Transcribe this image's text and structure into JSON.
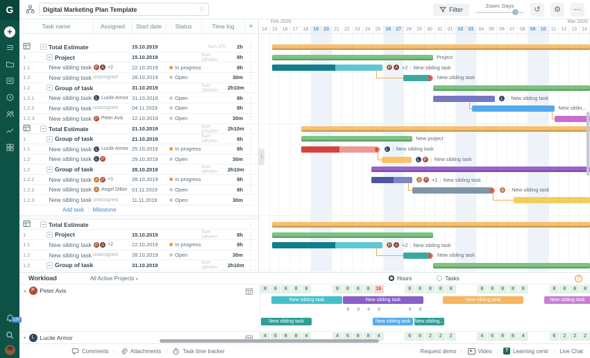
{
  "glyphs": {
    "kebab": "⋮",
    "star": "☆",
    "caret": "▾",
    "tri_up": "▴",
    "tri_down": "▾",
    "minus": "−",
    "more": "⋯",
    "history": "↺",
    "gear": "⚙",
    "play": "▶",
    "chevron": "‹",
    "plus": "+",
    "help": "?"
  },
  "sidebar": {
    "logo": "G",
    "icons": [
      "task-list-icon",
      "folder-icon",
      "board-icon",
      "clock-icon",
      "team-icon",
      "analytics-icon",
      "portfolio-icon"
    ],
    "notification_badge": "120"
  },
  "topbar": {
    "title": "Digital Marketing Plan Template",
    "filter_label": "Filter",
    "zoom_label": "Zoom: Days"
  },
  "table": {
    "columns": [
      "Task name",
      "Assigned",
      "Start date",
      "Status",
      "Time log"
    ],
    "add_column_label": "+"
  },
  "statuses": {
    "In progress": "#f0932f",
    "Open": "#c3cbd1"
  },
  "timeline": {
    "months": [
      {
        "label": "Feb 2020",
        "span": 18
      },
      {
        "label": "Mar 2020",
        "span": 14
      }
    ],
    "days": [
      "14",
      "15",
      "16",
      "17",
      "18",
      "19",
      "20",
      "21",
      "22",
      "23",
      "24",
      "25",
      "26",
      "27",
      "28",
      "29",
      "30",
      "31",
      "01",
      "02",
      "03",
      "04",
      "05",
      "06",
      "07",
      "08",
      "09",
      "10",
      "11",
      "12",
      "13",
      "14"
    ],
    "weekend_cols": [
      5,
      6,
      12,
      13,
      19,
      20,
      26,
      27
    ]
  },
  "blocks": [
    {
      "rows": [
        {
          "kind": "total",
          "name": "Total Estimate",
          "start": "15.10.2019",
          "sum": "Sum 37h",
          "time": "2h"
        },
        {
          "kind": "group",
          "num": "1",
          "name": "Project",
          "start": "15.10.2019",
          "sum": "Sum 16h30m",
          "time": "8h"
        },
        {
          "kind": "task",
          "num": "1.1",
          "name": "New sibling task",
          "assignees": [
            {
              "i": "P",
              "c": "#9a5a3c"
            },
            {
              "i": "A",
              "c": "#7a3f35"
            }
          ],
          "extra": "+2",
          "start": "22.10.2019",
          "status": "In progress",
          "time": "8h"
        },
        {
          "kind": "task",
          "num": "1.2",
          "name": "New sibling task",
          "unassigned": "unassigned",
          "start": "28.10.2019",
          "status": "Open",
          "time": "30m"
        },
        {
          "kind": "group",
          "num": "1.2",
          "name": "Group of tasks",
          "start": "31.10.2019",
          "sum": "Sum 16h30m",
          "time": "2h10m"
        },
        {
          "kind": "task",
          "num": "1.2.1",
          "name": "New sibling task",
          "assignees": [
            {
              "i": "L",
              "c": "#32455e"
            }
          ],
          "assignee_name": "Lucile Armor",
          "start": "31.10.2019",
          "status": "Open",
          "time": "8h"
        },
        {
          "kind": "task",
          "num": "1.2.2",
          "name": "New sibling task",
          "unassigned": "unassigned",
          "start": "04.11.2019",
          "status": "Open",
          "time": "8h"
        },
        {
          "kind": "task",
          "num": "1.2.3",
          "name": "New sibling task",
          "assignees": [
            {
              "i": "P",
              "c": "#b04a3a"
            }
          ],
          "assignee_name": "Peter Avis",
          "start": "12.10.2019",
          "status": "Open",
          "time": "30m"
        }
      ],
      "bars": [
        {
          "row": 0,
          "s": 1.2,
          "e": 32,
          "color": "#f9c06a",
          "summary": true
        },
        {
          "row": 1,
          "s": 1.2,
          "e": 16.8,
          "color": "#7cc47f",
          "summary": true,
          "label": "Project"
        },
        {
          "row": 2,
          "s": 1.2,
          "e": 11.9,
          "color": "#5ec6d4",
          "progress": 0.57,
          "progress_color": "#0e7f8b",
          "avatars": [
            {
              "i": "P",
              "c": "#9a5a3c"
            },
            {
              "i": "A",
              "c": "#7a3f35"
            }
          ],
          "extra": "+2",
          "label": "New sibling task"
        },
        {
          "row": 3,
          "s": 13.9,
          "e": 16.6,
          "color": "#3aa89f",
          "flame": true,
          "label": "New sibling task",
          "dep": 11.3
        },
        {
          "row": 4,
          "s": 16.8,
          "e": 32,
          "color": "#7cc47f",
          "summary": true
        },
        {
          "row": 5,
          "s": 16.8,
          "e": 22.8,
          "color": "#7478bf",
          "avatars": [
            {
              "i": "L",
              "c": "#32455e"
            }
          ],
          "label": "New sibling task"
        },
        {
          "row": 6,
          "s": 20.6,
          "e": 28.6,
          "color": "#54aaeb",
          "label": "New siblin...",
          "dep": 20.3
        },
        {
          "row": 7,
          "s": 28.6,
          "e": 32,
          "color": "#c76fd1",
          "dep": 28.3
        }
      ]
    },
    {
      "rows": [
        {
          "kind": "total",
          "name": "Total Estimate",
          "start": "21.10.2019",
          "sum": "Sum 37h20m",
          "time": "2h10m"
        },
        {
          "kind": "group",
          "num": "1",
          "name": "Group of tasks",
          "start": "21.10.2019",
          "sum": "Sum 16h30m",
          "time": "8h"
        },
        {
          "kind": "task",
          "num": "1.1",
          "name": "New sibling task",
          "assignees": [
            {
              "i": "L",
              "c": "#32455e"
            }
          ],
          "assignee_name": "Lucile Armor",
          "start": "25.10.2019",
          "status": "In progress",
          "time": "8h"
        },
        {
          "kind": "task",
          "num": "1.2",
          "name": "New sibling task",
          "assignees": [
            {
              "i": "L",
              "c": "#32455e"
            },
            {
              "i": "P",
              "c": "#b04a3a"
            }
          ],
          "start": "29.10.2019",
          "status": "Open",
          "time": "30m"
        },
        {
          "kind": "group",
          "num": "1.2",
          "name": "Group of tasks",
          "start": "28.10.2019",
          "sum": "Sum 16h30m",
          "time": "2h10m"
        },
        {
          "kind": "task",
          "num": "1.2.1",
          "name": "New sibling task",
          "assignees": [
            {
              "i": "A",
              "c": "#c07a3e"
            },
            {
              "i": "P",
              "c": "#b04a3a"
            }
          ],
          "extra": "+1",
          "start": "28.10.2019",
          "status": "In progress",
          "time": "8h"
        },
        {
          "kind": "task",
          "num": "1.2.2",
          "name": "New sibling task",
          "assignees": [
            {
              "i": "A",
              "c": "#c07a3e"
            }
          ],
          "assignee_name": "Angel Dillon",
          "start": "01.11.2019",
          "status": "Open",
          "time": "8h"
        },
        {
          "kind": "task",
          "num": "1.2.3",
          "name": "New sibling task",
          "unassigned": "unassigned",
          "start": "11.11.2019",
          "status": "Open",
          "time": "30m"
        }
      ],
      "links": {
        "add": "Add task",
        "milestone": "Milestone"
      },
      "bars": [
        {
          "row": 0,
          "s": 4,
          "e": 32,
          "color": "#f9c06a",
          "summary": true
        },
        {
          "row": 1,
          "s": 4,
          "e": 14.8,
          "color": "#7cc47f",
          "summary": true,
          "label": "New project"
        },
        {
          "row": 2,
          "s": 4,
          "e": 11.4,
          "color": "#ee9a94",
          "progress": 0.5,
          "progress_color": "#d8423c",
          "flame": true,
          "avatars": [
            {
              "i": "L",
              "c": "#32455e"
            }
          ],
          "label": "New sibling task"
        },
        {
          "row": 3,
          "s": 11.8,
          "e": 14.7,
          "color": "#f8c36a",
          "avatars": [
            {
              "i": "L",
              "c": "#32455e"
            },
            {
              "i": "P",
              "c": "#b04a3a"
            }
          ],
          "label": "New sibling task",
          "dep": 11.4
        },
        {
          "row": 4,
          "s": 10.8,
          "e": 32,
          "color": "#9a63ce",
          "summary": true
        },
        {
          "row": 5,
          "s": 10.8,
          "e": 14.8,
          "color": "#7b84cb",
          "progress": 0.55,
          "progress_color": "#4c55a5",
          "avatars": [
            {
              "i": "A",
              "c": "#c07a3e"
            },
            {
              "i": "P",
              "c": "#b04a3a"
            }
          ],
          "extra": "+1",
          "label": "New sibling task"
        },
        {
          "row": 6,
          "s": 14.8,
          "e": 22.6,
          "color": "#7e95a5",
          "flame": true,
          "avatars": [
            {
              "i": "A",
              "c": "#c07a3e"
            }
          ],
          "label": "New sibling task",
          "dep": 14.4
        },
        {
          "row": 7,
          "s": 24.6,
          "e": 32,
          "color": "#f2cf5b",
          "dep": 22.6
        }
      ]
    },
    {
      "rows": [
        {
          "kind": "total",
          "name": "Total Estimate"
        },
        {
          "kind": "group",
          "num": "1",
          "name": "Project",
          "start": "15.10.2019",
          "sum": "Sum 16h30m",
          "time": "8h"
        },
        {
          "kind": "task",
          "num": "1.1",
          "name": "New sibling task",
          "assignees": [
            {
              "i": "P",
              "c": "#9a5a3c"
            },
            {
              "i": "A",
              "c": "#7a3f35"
            }
          ],
          "extra": "+2",
          "start": "22.10.2019",
          "status": "In progress",
          "time": "8h"
        },
        {
          "kind": "task",
          "num": "1.2",
          "name": "New sibling task",
          "unassigned": "unassigned",
          "start": "28.10.2019",
          "status": "Open",
          "time": "30m"
        },
        {
          "kind": "group",
          "num": "1.2",
          "name": "Group of tasks",
          "start": "31.10.2019",
          "sum": "Sum 16h30m",
          "time": "2h10m"
        }
      ],
      "bars": [
        {
          "row": 0,
          "s": 1.2,
          "e": 32,
          "color": "#f9c06a",
          "summary": true
        },
        {
          "row": 1,
          "s": 1.2,
          "e": 16.8,
          "color": "#7cc47f",
          "summary": true
        },
        {
          "row": 2,
          "s": 1.2,
          "e": 11.9,
          "color": "#5ec6d4",
          "progress": 0.57,
          "progress_color": "#0e7f8b",
          "avatars": [
            {
              "i": "P",
              "c": "#9a5a3c"
            },
            {
              "i": "A",
              "c": "#7a3f35"
            }
          ],
          "extra": "+2",
          "label": "New sibling task"
        },
        {
          "row": 3,
          "s": 13.9,
          "e": 16.6,
          "color": "#3aa89f",
          "flame": true,
          "label": "New sibling task",
          "dep": 11.3
        },
        {
          "row": 4,
          "s": 16.8,
          "e": 32,
          "color": "#7cc47f",
          "summary": true
        }
      ]
    }
  ],
  "workload": {
    "title": "Workload",
    "scope": "All Active Projects",
    "modes": [
      {
        "label": "Hours",
        "selected": true
      },
      {
        "label": "Tasks",
        "selected": false
      }
    ],
    "rows": [
      {
        "name": "Peter Avis",
        "avatar_color": "#b04a3a",
        "avatar_initial": "P",
        "collapsed": false,
        "hours": [
          "8",
          "8",
          "8",
          "8",
          "8",
          "",
          "",
          "8",
          "8",
          "8",
          "8",
          "16",
          "",
          "",
          "8",
          "8",
          "8",
          "8",
          "8",
          "",
          "",
          "8",
          "8",
          "8",
          "8",
          "8",
          "",
          "",
          "8",
          "8",
          "8",
          "8"
        ],
        "overload_col": 11,
        "hours2": [
          "",
          "",
          "",
          "",
          "",
          "",
          "",
          "",
          "8",
          "8",
          "8",
          "8",
          "",
          "",
          "8",
          "8",
          "",
          "",
          "",
          "",
          "",
          "",
          "",
          "",
          "",
          "",
          "",
          "",
          "",
          "",
          "",
          ""
        ],
        "bars_row1": [
          {
            "s": 1.1,
            "e": 7.9,
            "color": "#45c0cb",
            "label": "New sibling task"
          },
          {
            "s": 8.0,
            "e": 15.8,
            "color": "#8a5fc8",
            "label": "New sibling task"
          },
          {
            "s": 17.7,
            "e": 25.5,
            "color": "#f6b55e",
            "label": "New sibling task"
          },
          {
            "s": 27.5,
            "e": 32,
            "color": "#c97fd4",
            "label": "New sibling task"
          }
        ],
        "bars_row2": [
          {
            "s": 0.05,
            "e": 5.0,
            "color": "#2f9e96",
            "label": "New sibling task"
          },
          {
            "s": 10.9,
            "e": 14.8,
            "color": "#55aaec",
            "label": "New sibling task"
          },
          {
            "s": 14.9,
            "e": 17.8,
            "color": "#2f9e96",
            "label": "New sibling..."
          }
        ]
      },
      {
        "name": "Lucile Armor",
        "avatar_color": "#32455e",
        "avatar_initial": "L",
        "collapsed": true,
        "hours": [
          "4",
          "6",
          "8",
          "8",
          "4",
          "",
          "",
          "4",
          "6",
          "8",
          "8",
          "4",
          "",
          "",
          "6",
          "6",
          "2",
          "2",
          "2",
          "",
          "",
          "4",
          "6",
          "8",
          "8",
          "4",
          "",
          "",
          "6",
          "2",
          "2",
          "2"
        ],
        "overload_col": -1
      }
    ]
  },
  "bottombar": {
    "left": [
      {
        "icon": "comment-icon",
        "label": "Comments"
      },
      {
        "icon": "paperclip-icon",
        "label": "Attachments"
      },
      {
        "icon": "stopwatch-icon",
        "label": "Task time tracker"
      }
    ],
    "right": [
      {
        "icon": "",
        "label": "Request demo"
      },
      {
        "icon": "video-icon",
        "label": "Video"
      },
      {
        "icon": "help-icon",
        "label": "Learning centr"
      },
      {
        "icon": "",
        "label": "Live Chat"
      }
    ]
  }
}
